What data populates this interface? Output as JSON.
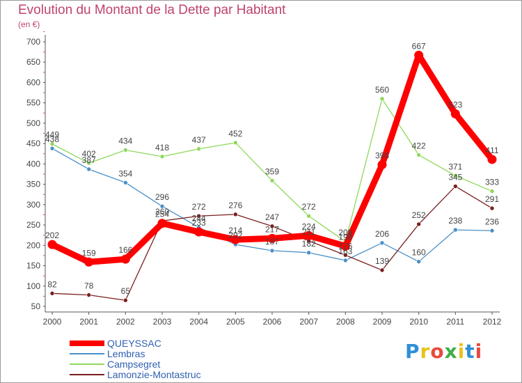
{
  "header": {
    "title": "Evolution du Montant de la Dette par Habitant",
    "subtitle": "(en €)"
  },
  "logo": {
    "text": "Proxiti",
    "letter_colors": [
      "#2f8fd8",
      "#e8c21a",
      "#e84a3c",
      "#3fae49",
      "#e8c21a",
      "#2f8fd8",
      "#e84a3c"
    ]
  },
  "chart_data": {
    "type": "line",
    "title": "Evolution du Montant de la Dette par Habitant",
    "subtitle": "(en €)",
    "xlabel": "",
    "ylabel": "",
    "x": [
      "2000",
      "2001",
      "2002",
      "2003",
      "2004",
      "2005",
      "2006",
      "2007",
      "2008",
      "2009",
      "2010",
      "2011",
      "2012"
    ],
    "ylim": [
      50,
      700
    ],
    "yticks": [
      50,
      100,
      150,
      200,
      250,
      300,
      350,
      400,
      450,
      500,
      550,
      600,
      650,
      700
    ],
    "grid": false,
    "legend_position": "bottom-left",
    "series": [
      {
        "name": "QUEYSSAC",
        "color": "#ff0000",
        "emphasis": true,
        "values": [
          202,
          159,
          166,
          254,
          233,
          214,
          217,
          224,
          198,
          398,
          667,
          523,
          411
        ],
        "labels": [
          "202",
          "159",
          "166",
          "254",
          "233",
          "214",
          "217",
          "224",
          "198",
          "398",
          "667",
          "523",
          "411"
        ]
      },
      {
        "name": "Lembras",
        "color": "#4a90c8",
        "values": [
          438,
          387,
          354,
          296,
          244,
          202,
          187,
          182,
          163,
          206,
          160,
          238,
          236
        ],
        "labels": [
          "438",
          "387",
          "354",
          "296",
          "244",
          "202",
          "187",
          "182",
          "163",
          "206",
          "160",
          "238",
          "236"
        ]
      },
      {
        "name": "Campsegret",
        "color": "#8ed85a",
        "values": [
          449,
          402,
          434,
          418,
          437,
          452,
          359,
          272,
          209,
          560,
          422,
          371,
          333
        ],
        "labels": [
          "449",
          "402",
          "434",
          "418",
          "437",
          "452",
          "359",
          "272",
          "209",
          "560",
          "422",
          "371",
          "333"
        ]
      },
      {
        "name": "Lamonzie-Montastruc",
        "color": "#7a1e1e",
        "values": [
          82,
          78,
          65,
          260,
          272,
          276,
          247,
          211,
          176,
          139,
          252,
          345,
          291
        ],
        "labels": [
          "82",
          "78",
          "65",
          "260",
          "272",
          "276",
          "247",
          "211",
          "176",
          "139",
          "252",
          "345",
          "291"
        ]
      }
    ]
  }
}
